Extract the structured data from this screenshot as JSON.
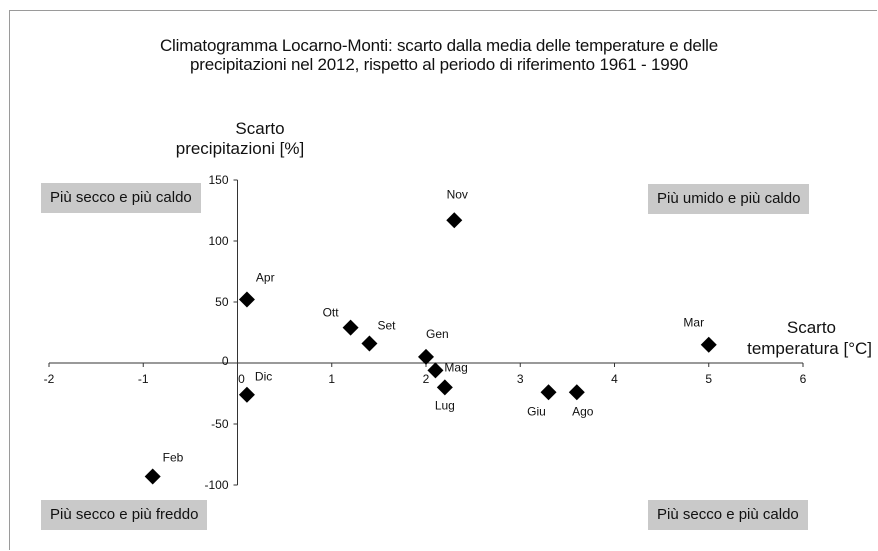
{
  "chart_data": {
    "type": "scatter",
    "title_line1": "Climatogramma Locarno-Monti: scarto dalla media delle temperature e delle",
    "title_line2": "precipitazioni nel 2012, rispetto al periodo di riferimento 1961 - 1990",
    "ylabel_line1": "Scarto",
    "ylabel_line2": "precipitazioni [%]",
    "xlabel_line1": "Scarto",
    "xlabel_line2": "temperatura [°C]",
    "xlim": [
      -2,
      6
    ],
    "ylim": [
      -100,
      150
    ],
    "x_ticks": [
      -2,
      -1,
      0,
      1,
      2,
      3,
      4,
      5,
      6
    ],
    "y_ticks": [
      -100,
      -50,
      0,
      50,
      100,
      150
    ],
    "quadrant_labels": {
      "top_left": "Più secco e più caldo",
      "top_right": "Più umido e più caldo",
      "bottom_left": "Più secco e più freddo",
      "bottom_right": "Più secco e più caldo"
    },
    "marker": "diamond",
    "marker_color": "#000000",
    "points": [
      {
        "label": "Gen",
        "x": 2.0,
        "y": 5
      },
      {
        "label": "Feb",
        "x": -0.9,
        "y": -93
      },
      {
        "label": "Mar",
        "x": 5.0,
        "y": 15
      },
      {
        "label": "Apr",
        "x": 0.1,
        "y": 52
      },
      {
        "label": "Mag",
        "x": 2.1,
        "y": -6
      },
      {
        "label": "Giu",
        "x": 3.3,
        "y": -24
      },
      {
        "label": "Lug",
        "x": 2.2,
        "y": -20
      },
      {
        "label": "Ago",
        "x": 3.6,
        "y": -24
      },
      {
        "label": "Set",
        "x": 1.4,
        "y": 16
      },
      {
        "label": "Ott",
        "x": 1.2,
        "y": 29
      },
      {
        "label": "Nov",
        "x": 2.3,
        "y": 117
      },
      {
        "label": "Dic",
        "x": 0.1,
        "y": -26
      }
    ]
  }
}
